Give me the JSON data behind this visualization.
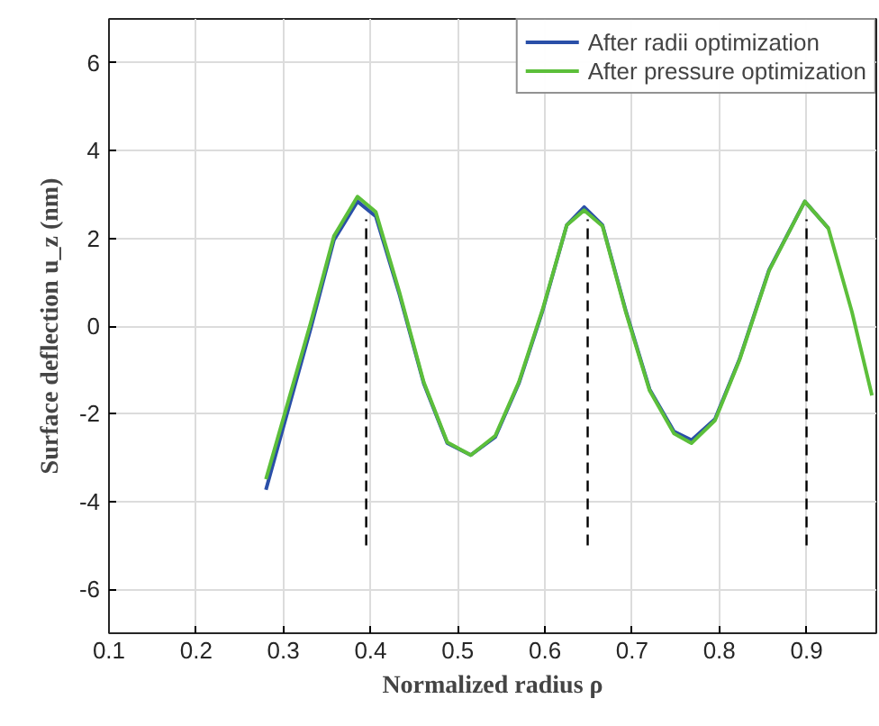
{
  "chart_data": {
    "type": "line",
    "xlabel": "Normalized radius ρ",
    "ylabel": "Surface deflection u_z (nm)",
    "xlim": [
      0.1,
      0.98
    ],
    "ylim": [
      -7,
      7
    ],
    "xticks": [
      0.1,
      0.2,
      0.3,
      0.4,
      0.5,
      0.6,
      0.7,
      0.8,
      0.9
    ],
    "yticks": [
      -6,
      -4,
      -2,
      0,
      2,
      4,
      6
    ],
    "grid": true,
    "legend": "top right",
    "line_style": "solid",
    "marker": "none",
    "x": [
      0.28,
      0.331,
      0.358,
      0.385,
      0.406,
      0.433,
      0.461,
      0.488,
      0.515,
      0.543,
      0.57,
      0.597,
      0.625,
      0.645,
      0.666,
      0.693,
      0.72,
      0.748,
      0.768,
      0.795,
      0.823,
      0.857,
      0.898,
      0.925,
      0.952,
      0.975
    ],
    "series": [
      {
        "name": "After radii optimization",
        "color": "#2a4fa8",
        "values": [
          -3.73,
          -0.08,
          1.96,
          2.84,
          2.5,
          0.73,
          -1.31,
          -2.67,
          -2.94,
          -2.53,
          -1.31,
          0.33,
          2.3,
          2.71,
          2.3,
          0.33,
          -1.44,
          -2.4,
          -2.6,
          -2.12,
          -0.76,
          1.28,
          2.84,
          2.23,
          null,
          null
        ]
      },
      {
        "name": "After pressure optimization",
        "color": "#5cbf3a",
        "values": [
          -3.49,
          0.05,
          2.05,
          2.95,
          2.6,
          0.78,
          -1.28,
          -2.65,
          -2.94,
          -2.5,
          -1.28,
          0.36,
          2.3,
          2.64,
          2.28,
          0.3,
          -1.47,
          -2.45,
          -2.67,
          -2.15,
          -0.78,
          1.26,
          2.84,
          2.23,
          0.33,
          -1.58
        ]
      },
      {
        "type": "line",
        "line_style": "dashed",
        "color": "#000000",
        "x": [
          0.395,
          0.395,
          null,
          0.649,
          0.649,
          null,
          0.9,
          0.9
        ],
        "values": [
          -5,
          2.43,
          null,
          -5,
          2.43,
          null,
          -5,
          2.43
        ]
      }
    ]
  }
}
